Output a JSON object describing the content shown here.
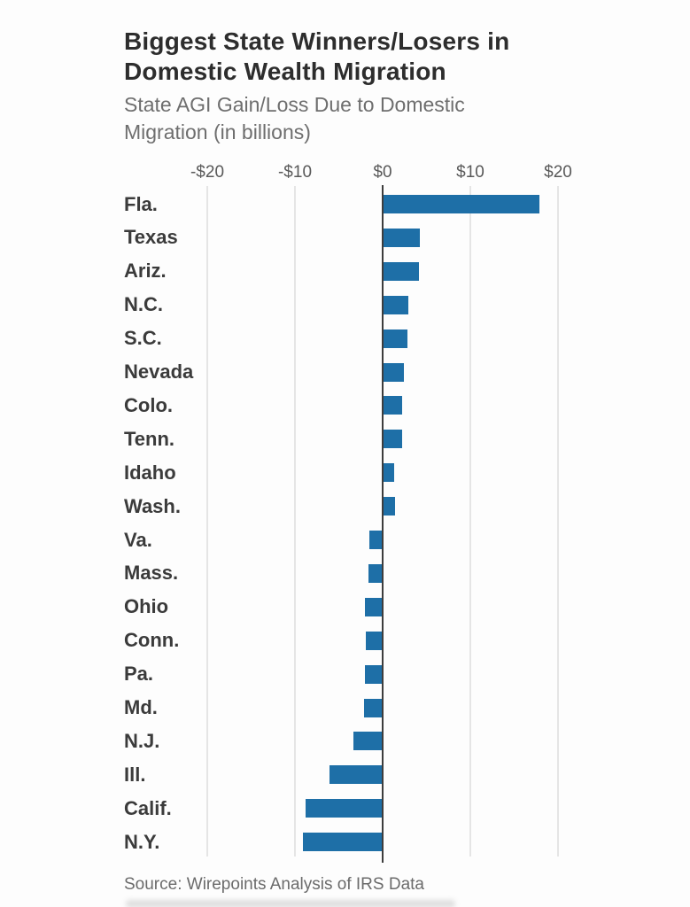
{
  "header": {
    "title_line1": "Biggest State Winners/Losers in",
    "title_line2": "Domestic Wealth Migration",
    "subtitle_line1": "State AGI Gain/Loss Due to Domestic",
    "subtitle_line2": "Migration (in billions)"
  },
  "chart_data": {
    "type": "bar",
    "orientation": "horizontal",
    "title": "Biggest State Winners/Losers in Domestic Wealth Migration",
    "subtitle": "State AGI Gain/Loss Due to Domestic Migration (in billions)",
    "unit": "billions USD",
    "categories": [
      "Fla.",
      "Texas",
      "Ariz.",
      "N.C.",
      "S.C.",
      "Nevada",
      "Colo.",
      "Tenn.",
      "Idaho",
      "Wash.",
      "Va.",
      "Mass.",
      "Ohio",
      "Conn.",
      "Pa.",
      "Md.",
      "N.J.",
      "Ill.",
      "Calif.",
      "N.Y."
    ],
    "values": [
      17.8,
      4.1,
      4.0,
      2.8,
      2.7,
      2.3,
      2.1,
      2.1,
      1.2,
      1.3,
      -1.4,
      -1.5,
      -1.9,
      -1.8,
      -1.9,
      -2.0,
      -3.2,
      -6.0,
      -8.7,
      -9.0
    ],
    "xticks": [
      {
        "label": "-$20",
        "value": -20
      },
      {
        "label": "-$10",
        "value": -10
      },
      {
        "label": "$0",
        "value": 0
      },
      {
        "label": "$10",
        "value": 10
      },
      {
        "label": "$20",
        "value": 20
      }
    ],
    "xlim": [
      -22,
      35
    ],
    "grid": true,
    "legend": false,
    "bar_color": "#1e6fa7",
    "axis_color": "#3d3d3d",
    "grid_color": "#e5e5e5"
  },
  "footer": {
    "source": "Source: Wirepoints Analysis of IRS Data"
  }
}
